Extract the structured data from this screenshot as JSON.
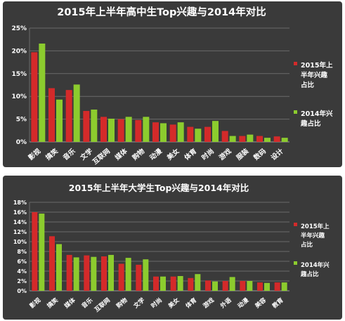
{
  "colors": {
    "series_2015": "#d42a2a",
    "series_2014": "#8ccc2e",
    "text": "#ffffff",
    "grid": "#6a6a6a",
    "panel_bg": "#3a3a3a"
  },
  "chart_data": [
    {
      "type": "bar",
      "title": "2015年上半年高中生Top兴趣与2014年对比",
      "categories": [
        "影视",
        "搞笑",
        "音乐",
        "文学",
        "互联网",
        "媒体",
        "购物",
        "动漫",
        "美女",
        "体育",
        "时尚",
        "游戏",
        "服装",
        "数码",
        "设计"
      ],
      "series": [
        {
          "name": "2015年上半年兴趣占比",
          "values": [
            19.7,
            11.8,
            11.4,
            6.8,
            5.5,
            5.0,
            4.8,
            4.3,
            3.8,
            3.3,
            3.3,
            2.4,
            1.3,
            1.3,
            1.2
          ]
        },
        {
          "name": "2014年兴趣占比",
          "values": [
            21.6,
            9.3,
            12.6,
            7.1,
            5.1,
            5.5,
            5.5,
            4.1,
            4.3,
            2.9,
            4.6,
            1.3,
            1.6,
            0.9,
            0.9
          ]
        }
      ],
      "yticks": [
        "0%",
        "5%",
        "10%",
        "15%",
        "20%",
        "25%"
      ],
      "ylim": [
        0,
        25
      ],
      "legend": [
        "2015年上",
        "半年兴趣",
        "占比",
        "2014年兴",
        "趣占比"
      ],
      "legend_position": "right",
      "grid": true
    },
    {
      "type": "bar",
      "title": "2015年上半年大学生Top兴趣与2014年对比",
      "categories": [
        "影视",
        "搞笑",
        "媒体",
        "音乐",
        "互联网",
        "购物",
        "文学",
        "时尚",
        "美女",
        "体育",
        "游戏",
        "外语",
        "动漫",
        "美容",
        "教育"
      ],
      "series": [
        {
          "name": "2015年上半年兴趣占比",
          "values": [
            16.0,
            11.1,
            7.3,
            7.2,
            7.0,
            5.5,
            5.3,
            2.9,
            2.9,
            2.6,
            2.1,
            2.0,
            2.0,
            1.7,
            1.7
          ]
        },
        {
          "name": "2014年兴趣占比",
          "values": [
            15.7,
            9.5,
            6.8,
            6.9,
            7.3,
            6.7,
            6.4,
            2.9,
            3.0,
            3.4,
            1.9,
            2.8,
            2.0,
            1.6,
            1.7
          ]
        }
      ],
      "yticks": [
        "0%",
        "2%",
        "4%",
        "6%",
        "8%",
        "10%",
        "12%",
        "14%",
        "16%",
        "18%"
      ],
      "ylim": [
        0,
        18
      ],
      "legend": [
        "2015年上",
        "半年兴趣",
        "占比",
        "2014年兴",
        "趣占比"
      ],
      "legend_position": "right",
      "grid": true
    }
  ]
}
